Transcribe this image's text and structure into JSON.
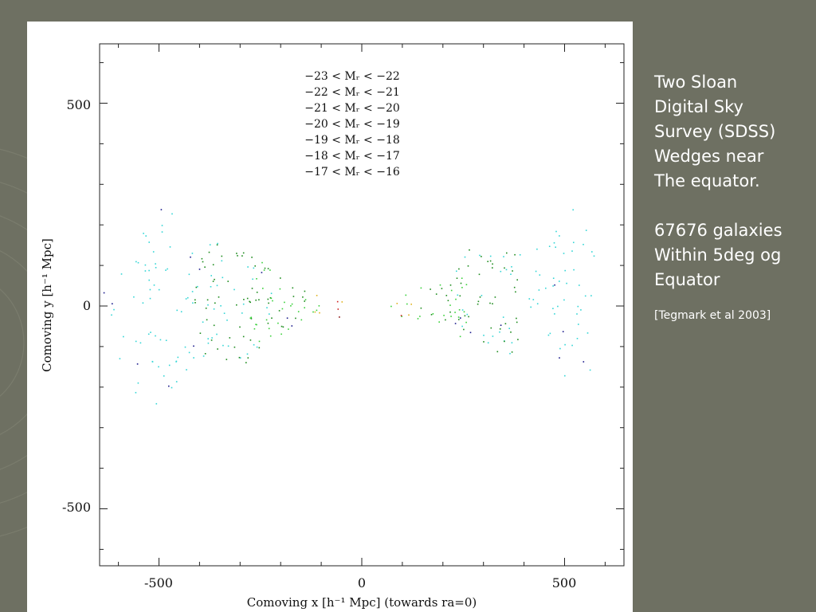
{
  "slide": {
    "description_lines": [
      "Two Sloan",
      "Digital Sky",
      "Survey (SDSS)",
      "Wedges near",
      "The equator."
    ],
    "count_lines": [
      "67676 galaxies",
      "Within 5deg og",
      "Equator"
    ],
    "citation": "[Tegmark et al 2003]"
  },
  "chart_data": {
    "type": "scatter",
    "title": "",
    "xlabel": "Comoving x [h⁻¹ Mpc] (towards ra=0)",
    "ylabel": "Comoving y [h⁻¹ Mpc]",
    "xlim": [
      -650,
      650
    ],
    "ylim": [
      -650,
      650
    ],
    "x_ticks": [
      -500,
      0,
      500
    ],
    "y_ticks": [
      -500,
      0,
      500
    ],
    "x_tick_labels": [
      "-500",
      "0",
      "500"
    ],
    "y_tick_labels": [
      "-500",
      "0",
      "500"
    ],
    "grid": false,
    "legend_placement": "top-center",
    "total_points": 67676,
    "series": [
      {
        "name": "−23 < Mᵣ < −22",
        "color": "#1a1a8c",
        "rmin": 150,
        "rmax": 640,
        "density": 0.6
      },
      {
        "name": "−22 < Mᵣ < −21",
        "color": "#33d6d6",
        "rmin": 220,
        "rmax": 620,
        "density": 6
      },
      {
        "name": "−21 < Mᵣ < −20",
        "color": "#1e8c1e",
        "rmin": 140,
        "rmax": 420,
        "density": 9
      },
      {
        "name": "−20 < Mᵣ < −19",
        "color": "#39d13a",
        "rmin": 70,
        "rmax": 280,
        "density": 9
      },
      {
        "name": "−19 < Mᵣ < −18",
        "color": "#e0b21e",
        "rmin": 45,
        "rmax": 160,
        "density": 4
      },
      {
        "name": "−18 < Mᵣ < −17",
        "color": "#d02020",
        "rmin": 10,
        "rmax": 110,
        "density": 3
      },
      {
        "name": "−17 < Mᵣ < −16",
        "color": "#8c1010",
        "rmin": 10,
        "rmax": 80,
        "density": 2
      }
    ]
  }
}
